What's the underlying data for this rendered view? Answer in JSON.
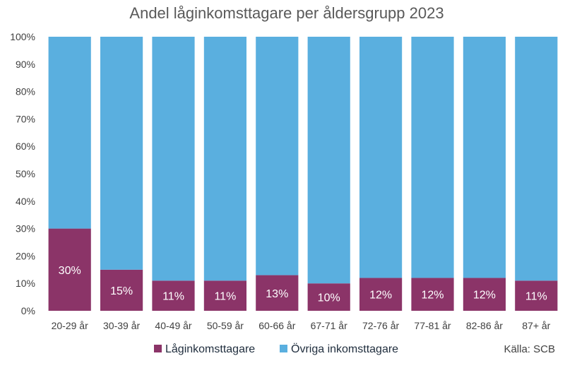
{
  "chart_data": {
    "type": "bar",
    "stacked": true,
    "title": "Andel låginkomsttagare per åldersgrupp 2023",
    "categories": [
      "20-29 år",
      "30-39 år",
      "40-49 år",
      "50-59 år",
      "60-66 år",
      "67-71 år",
      "72-76 år",
      "77-81 år",
      "82-86 år",
      "87+ år"
    ],
    "series": [
      {
        "name": "Låginkomsttagare",
        "color": "#8b3468",
        "values": [
          30,
          15,
          11,
          11,
          13,
          10,
          12,
          12,
          12,
          11
        ],
        "labels": [
          "30%",
          "15%",
          "11%",
          "11%",
          "13%",
          "10%",
          "12%",
          "12%",
          "12%",
          "11%"
        ]
      },
      {
        "name": "Övriga inkomsttagare",
        "color": "#5aafdf",
        "values": [
          70,
          85,
          89,
          89,
          87,
          90,
          88,
          88,
          88,
          89
        ]
      }
    ],
    "ylim": [
      0,
      100
    ],
    "yticks": [
      "0%",
      "10%",
      "20%",
      "30%",
      "40%",
      "50%",
      "60%",
      "70%",
      "80%",
      "90%",
      "100%"
    ],
    "grid": false,
    "legend": "bottom",
    "source": "Källa: SCB"
  }
}
